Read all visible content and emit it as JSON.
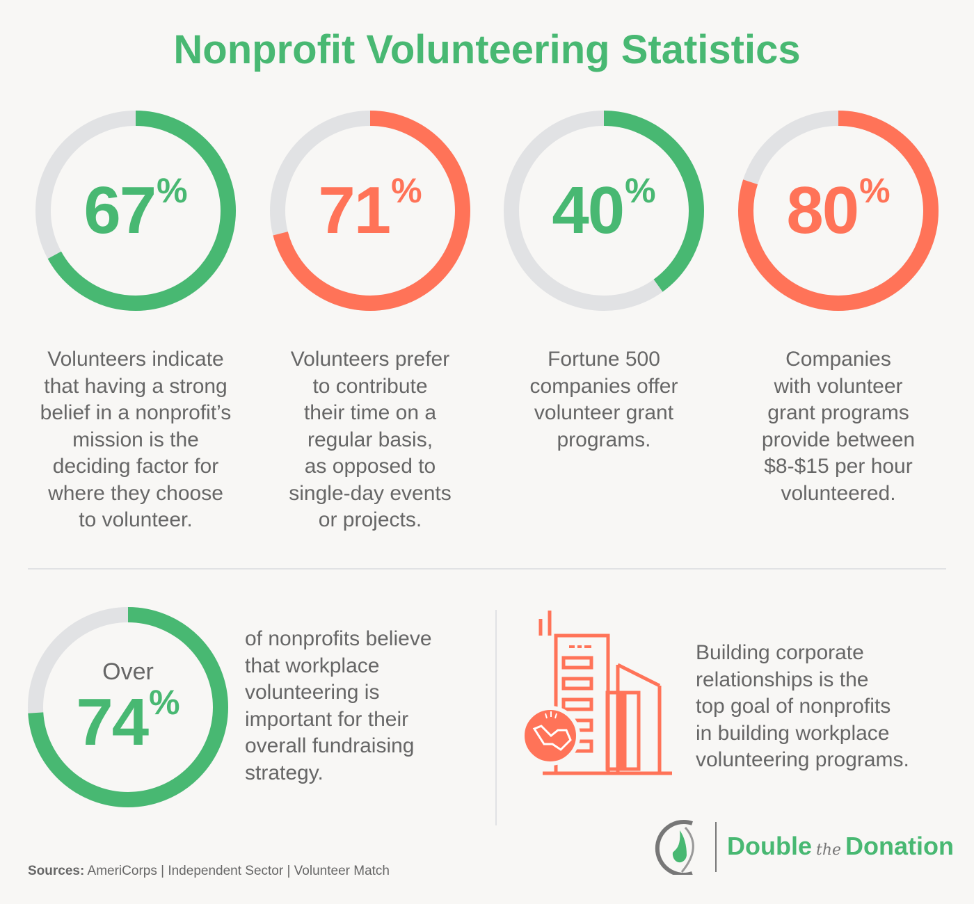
{
  "title": "Nonprofit Volunteering Statistics",
  "colors": {
    "green": "#48b872",
    "coral": "#ff7358",
    "track": "#e1e2e4",
    "text": "#666666",
    "background": "#f8f7f5"
  },
  "stats": [
    {
      "value": "67",
      "percent": 67,
      "unit": "%",
      "color": "#48b872",
      "desc": [
        "Volunteers indicate",
        "that having a strong",
        "belief in a nonprofit’s",
        "mission is the",
        "deciding factor for",
        "where they choose",
        "to volunteer."
      ]
    },
    {
      "value": "71",
      "percent": 71,
      "unit": "%",
      "color": "#ff7358",
      "desc": [
        "Volunteers prefer",
        "to contribute",
        "their time on a",
        "regular basis,",
        "as opposed to",
        "single-day events",
        "or projects."
      ]
    },
    {
      "value": "40",
      "percent": 40,
      "unit": "%",
      "color": "#48b872",
      "desc": [
        "Fortune 500",
        "companies offer",
        "volunteer grant",
        "programs."
      ]
    },
    {
      "value": "80",
      "percent": 80,
      "unit": "%",
      "color": "#ff7358",
      "desc": [
        "Companies",
        "with volunteer",
        "grant programs",
        "provide between",
        "$8-$15 per hour",
        "volunteered."
      ]
    }
  ],
  "bottom_stat": {
    "prefix": "Over",
    "value": "74",
    "percent": 74,
    "unit": "%",
    "color": "#48b872",
    "desc": [
      "of nonprofits believe",
      "that workplace",
      "volunteering is",
      "important for their",
      "overall fundraising",
      "strategy."
    ]
  },
  "corporate": {
    "icon": "building-handshake-icon",
    "desc": [
      "Building corporate",
      "relationships is the",
      "top goal of nonprofits",
      "in building workplace",
      "volunteering programs."
    ]
  },
  "sources": {
    "label": "Sources:",
    "text": " AmeriCorps | Independent Sector | Volunteer Match"
  },
  "logo": {
    "part1": "Double",
    "part2": "the",
    "part3": "Donation"
  }
}
